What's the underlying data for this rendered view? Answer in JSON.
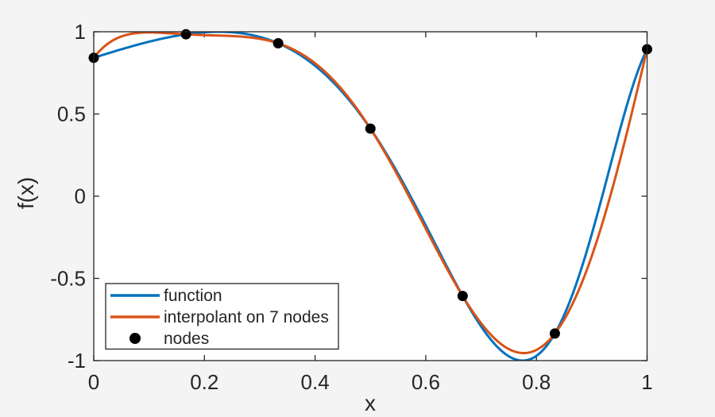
{
  "figure": {
    "background_color": "#f4f4f4",
    "plot_area_color": "#ffffff",
    "axis_color": "#262626"
  },
  "chart_data": {
    "type": "line",
    "title": "",
    "xlabel": "x",
    "ylabel": "f(x)",
    "xlim": [
      0,
      1
    ],
    "ylim": [
      -1,
      1
    ],
    "grid": false,
    "box": true,
    "tick_direction": "in",
    "xticks": {
      "values": [
        0,
        0.2,
        0.4,
        0.6,
        0.8,
        1
      ],
      "labels": [
        "0",
        "0.2",
        "0.4",
        "0.6",
        "0.8",
        "1"
      ]
    },
    "yticks": {
      "values": [
        -1,
        -0.5,
        0,
        0.5,
        1
      ],
      "labels": [
        "-1",
        "-0.5",
        "0",
        "0.5",
        "1"
      ]
    },
    "legend": {
      "position": "southwest",
      "entries": [
        "function",
        "interpolant on 7 nodes",
        "nodes"
      ]
    },
    "num_nodes": 7,
    "series": [
      {
        "name": "function",
        "kind": "line",
        "color": "#0072bd",
        "line_width": 3,
        "formula": "sin(exp(2*x))",
        "samples": {
          "x": [
            0,
            0.05,
            0.1,
            0.15,
            0.2,
            0.25,
            0.3,
            0.35,
            0.4,
            0.45,
            0.5,
            0.55,
            0.6,
            0.65,
            0.7,
            0.75,
            0.8,
            0.85,
            0.9,
            0.95,
            1
          ],
          "y": [
            0.8415,
            0.8936,
            0.9398,
            0.9757,
            0.9969,
            0.997,
            0.9686,
            0.9035,
            0.7932,
            0.6303,
            0.4108,
            0.137,
            -0.1776,
            -0.5036,
            -0.7917,
            -0.9735,
            -0.9712,
            -0.7238,
            -0.2314,
            0.3919,
            0.8939
          ]
        }
      },
      {
        "name": "interpolant on 7 nodes",
        "kind": "line",
        "color": "#d95319",
        "line_width": 3,
        "method": "degree-6 polynomial through the 7 nodes (barycentric Lagrange)"
      },
      {
        "name": "nodes",
        "kind": "scatter",
        "color": "#000000",
        "marker": "filled-circle",
        "marker_radius": 6.5,
        "x": [
          0,
          0.16667,
          0.33333,
          0.5,
          0.66667,
          0.83333,
          1
        ],
        "y": [
          0.8415,
          0.9847,
          0.9298,
          0.4108,
          -0.6068,
          -0.8353,
          0.8939
        ]
      }
    ]
  }
}
